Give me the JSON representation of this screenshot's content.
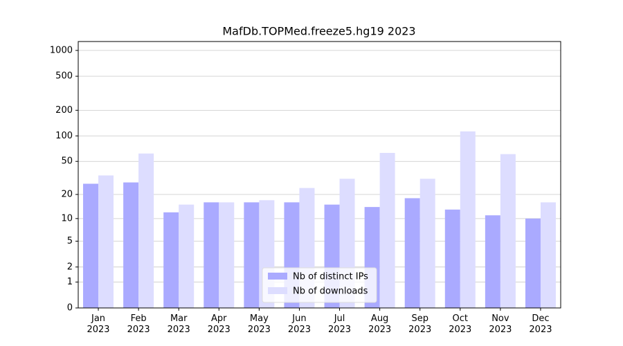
{
  "chart_data": {
    "type": "bar",
    "title": "MafDb.TOPMed.freeze5.hg19 2023",
    "categories": [
      "Jan\n2023",
      "Feb\n2023",
      "Mar\n2023",
      "Apr\n2023",
      "May\n2023",
      "Jun\n2023",
      "Jul\n2023",
      "Aug\n2023",
      "Sep\n2023",
      "Oct\n2023",
      "Nov\n2023",
      "Dec\n2023"
    ],
    "series": [
      {
        "name": "Nb of distinct IPs",
        "color": "#aaaaff",
        "values": [
          27,
          28,
          12,
          16,
          16,
          16,
          15,
          14,
          18,
          13,
          11,
          10
        ]
      },
      {
        "name": "Nb of downloads",
        "color": "#ddddff",
        "values": [
          34,
          62,
          15,
          16,
          17,
          24,
          31,
          63,
          31,
          113,
          61,
          16
        ]
      }
    ],
    "yscale": "symlog",
    "ylim": [
      0,
      1270
    ],
    "yticks": [
      0,
      1,
      2,
      5,
      10,
      20,
      50,
      100,
      200,
      500,
      1000
    ],
    "grid": true,
    "legend": "lower center"
  }
}
